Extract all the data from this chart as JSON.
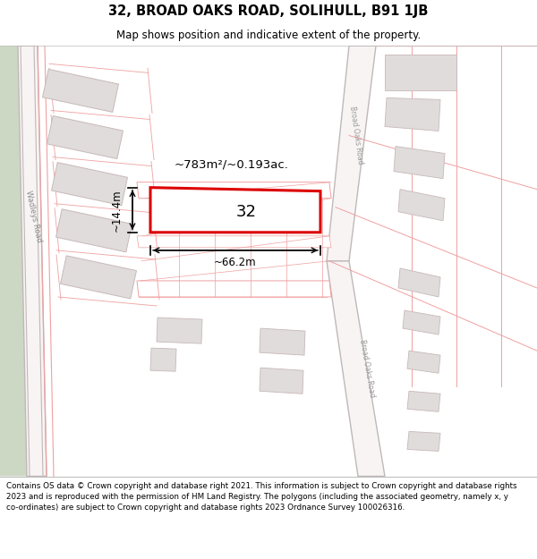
{
  "title": "32, BROAD OAKS ROAD, SOLIHULL, B91 1JB",
  "subtitle": "Map shows position and indicative extent of the property.",
  "footer": "Contains OS data © Crown copyright and database right 2021. This information is subject to Crown copyright and database rights 2023 and is reproduced with the permission of HM Land Registry. The polygons (including the associated geometry, namely x, y co-ordinates) are subject to Crown copyright and database rights 2023 Ordnance Survey 100026316.",
  "area_label": "~783m²/~0.193ac.",
  "width_label": "~66.2m",
  "height_label": "~14.4m",
  "property_num": "32",
  "road_label_wadleys": "Wadleys Road",
  "road_label_broad_upper": "Broad Oaks Road",
  "road_label_broad_lower": "Broad Oaks Road",
  "road_color": "#f0a0a0",
  "road_fill": "#ffffff",
  "building_fill": "#e0dcdc",
  "building_edge": "#c8b8b8",
  "green_fill": "#ccd8c4",
  "road_gray": "#c0b8b8",
  "road_gray_fill": "#f8f4f4",
  "highlight_red": "#dd0000",
  "map_bg": "#ffffff"
}
